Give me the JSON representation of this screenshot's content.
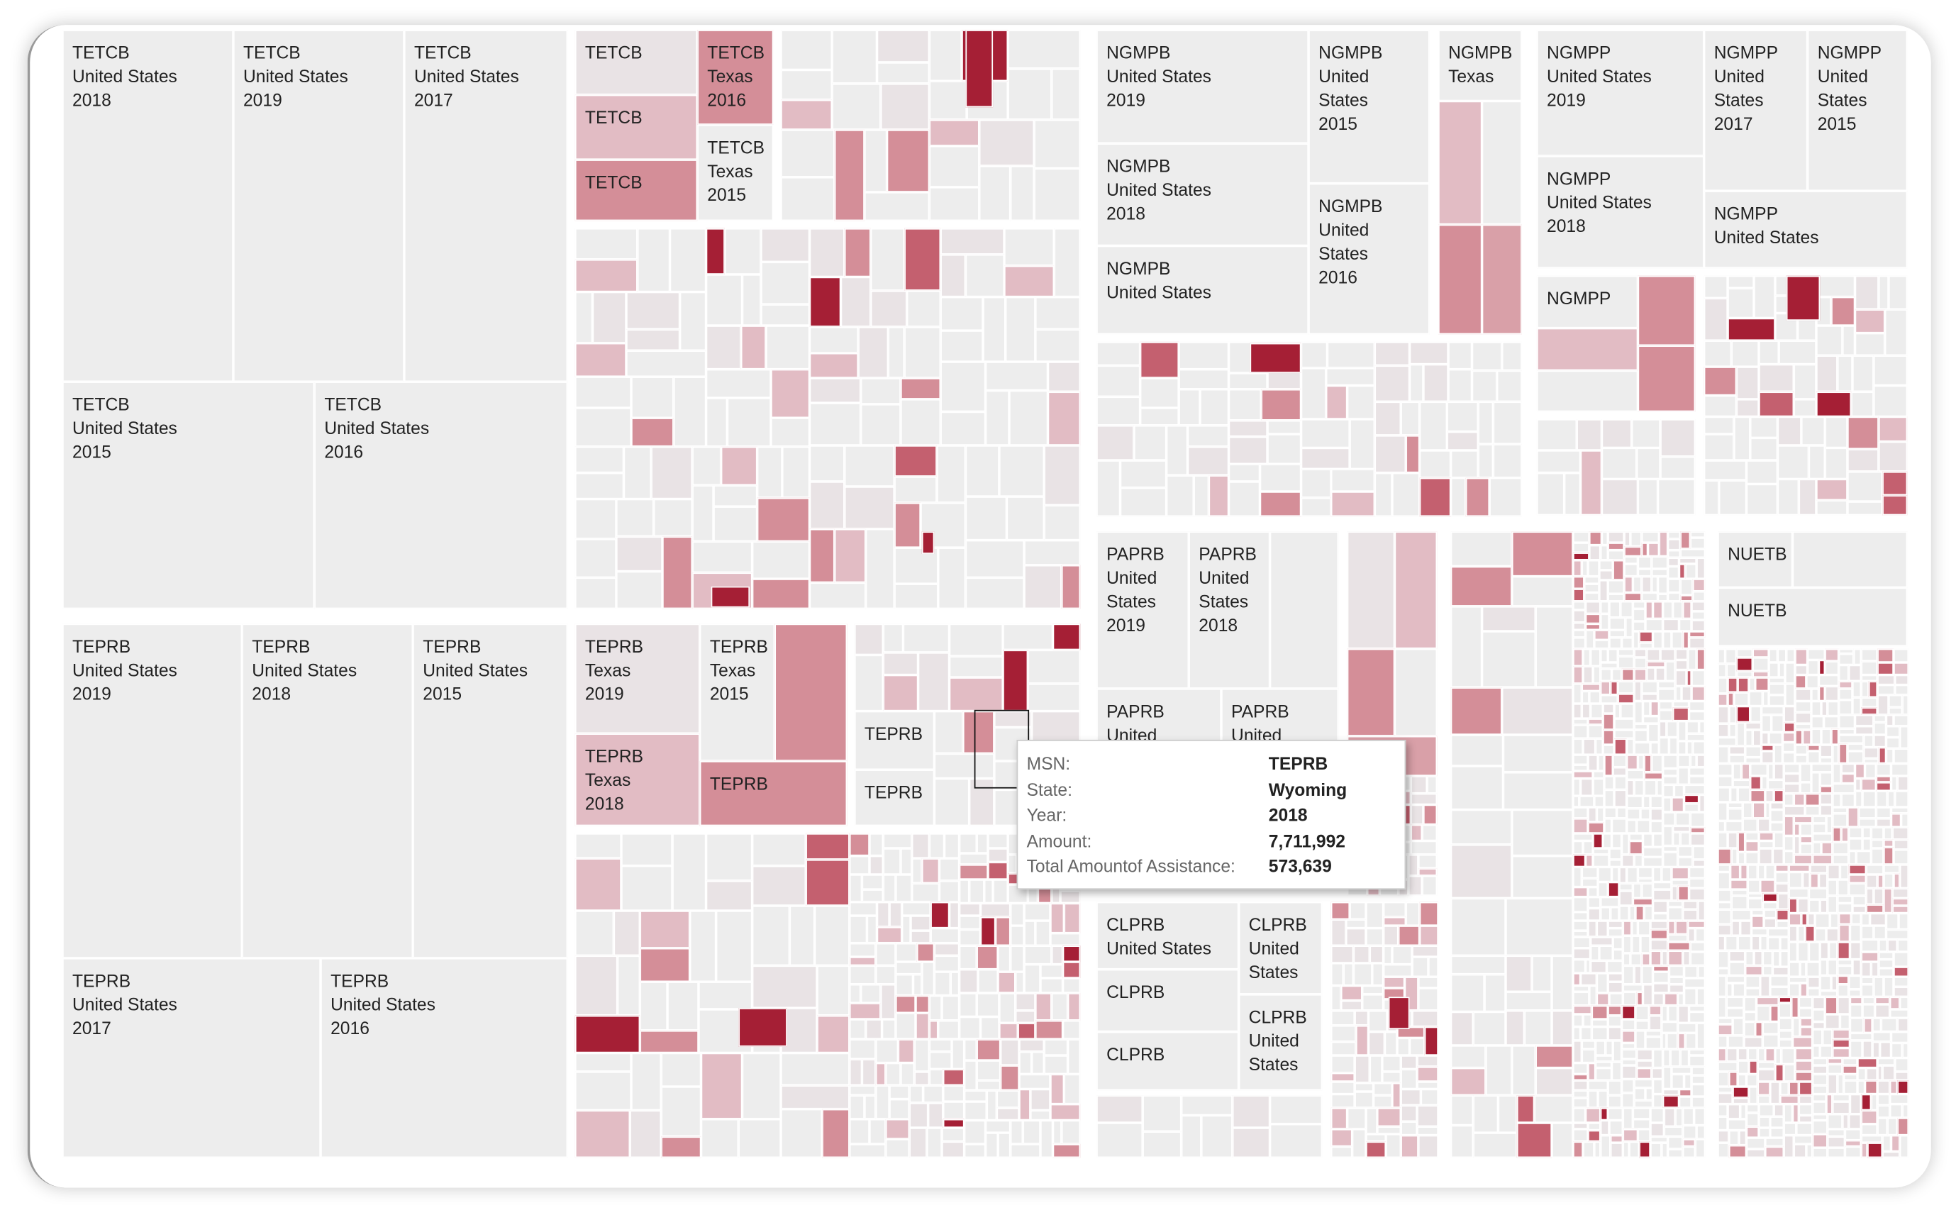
{
  "colors": {
    "base": "#ededed",
    "faint": "#e9e3e5",
    "light": "#e2bcc4",
    "medium": "#d9a0a8",
    "strong": "#d48e98",
    "deep": "#c4606f",
    "dark": "#a51f35"
  },
  "chart_data": {
    "type": "treemap",
    "size_measure": "Amount",
    "color_measure": "Total Amountof Assistance",
    "tiles": [
      {
        "lines": [
          "TETCB",
          "United States",
          "2018"
        ],
        "shade": "base"
      },
      {
        "lines": [
          "TETCB",
          "United States",
          "2019"
        ],
        "shade": "base"
      },
      {
        "lines": [
          "TETCB",
          "United States",
          "2017"
        ],
        "shade": "base"
      },
      {
        "lines": [
          "TETCB",
          "United States",
          "2015"
        ],
        "shade": "base"
      },
      {
        "lines": [
          "TETCB",
          "United States",
          "2016"
        ],
        "shade": "base"
      },
      {
        "lines": [
          "TETCB"
        ],
        "shade": "faint"
      },
      {
        "lines": [
          "TETCB"
        ],
        "shade": "light"
      },
      {
        "lines": [
          "TETCB"
        ],
        "shade": "strong"
      },
      {
        "lines": [
          "TETCB",
          "Texas",
          "2016"
        ],
        "shade": "strong"
      },
      {
        "lines": [
          "TETCB",
          "Texas",
          "2015"
        ],
        "shade": "base"
      },
      {
        "lines": [
          "TEPRB",
          "United States",
          "2019"
        ],
        "shade": "base"
      },
      {
        "lines": [
          "TEPRB",
          "United States",
          "2018"
        ],
        "shade": "base"
      },
      {
        "lines": [
          "TEPRB",
          "United States",
          "2015"
        ],
        "shade": "base"
      },
      {
        "lines": [
          "TEPRB",
          "United States",
          "2017"
        ],
        "shade": "base"
      },
      {
        "lines": [
          "TEPRB",
          "United States",
          "2016"
        ],
        "shade": "base"
      },
      {
        "lines": [
          "TEPRB",
          "Texas",
          "2019"
        ],
        "shade": "faint"
      },
      {
        "lines": [
          "TEPRB",
          "Texas",
          "2018"
        ],
        "shade": "light"
      },
      {
        "lines": [
          "TEPRB",
          "Texas",
          "2015"
        ],
        "shade": "base"
      },
      {
        "lines": [],
        "shade": "strong"
      },
      {
        "lines": [
          "TEPRB"
        ],
        "shade": "strong"
      },
      {
        "lines": [
          "TEPRB"
        ],
        "shade": "base"
      },
      {
        "lines": [
          "TEPRB"
        ],
        "shade": "base"
      },
      {
        "lines": [
          "NGMPB",
          "United States",
          "2019"
        ],
        "shade": "base"
      },
      {
        "lines": [
          "NGMPB",
          "United States",
          "2018"
        ],
        "shade": "base"
      },
      {
        "lines": [
          "NGMPB",
          "United States"
        ],
        "shade": "base"
      },
      {
        "lines": [
          "NGMPB",
          "United",
          "States",
          "2015"
        ],
        "shade": "base"
      },
      {
        "lines": [
          "NGMPB",
          "United",
          "States",
          "2016"
        ],
        "shade": "base"
      },
      {
        "lines": [
          "NGMPB",
          "Texas"
        ],
        "shade": "base"
      },
      {
        "lines": [],
        "shade": "light"
      },
      {
        "lines": [],
        "shade": "base"
      },
      {
        "lines": [],
        "shade": "strong"
      },
      {
        "lines": [],
        "shade": "medium"
      },
      {
        "lines": [
          "NGMPP",
          "United States",
          "2019"
        ],
        "shade": "base"
      },
      {
        "lines": [
          "NGMPP",
          "United States",
          "2018"
        ],
        "shade": "base"
      },
      {
        "lines": [
          "NGMPP",
          "United",
          "States",
          "2017"
        ],
        "shade": "base"
      },
      {
        "lines": [
          "NGMPP",
          "United",
          "States",
          "2015"
        ],
        "shade": "base"
      },
      {
        "lines": [
          "NGMPP",
          "United States"
        ],
        "shade": "base"
      },
      {
        "lines": [
          "NGMPP"
        ],
        "shade": "base"
      },
      {
        "lines": [],
        "shade": "strong"
      },
      {
        "lines": [],
        "shade": "light"
      },
      {
        "lines": [],
        "shade": "strong"
      },
      {
        "lines": [],
        "shade": "base"
      },
      {
        "lines": [
          "PAPRB",
          "United",
          "States",
          "2019"
        ],
        "shade": "base"
      },
      {
        "lines": [
          "PAPRB",
          "United",
          "States",
          "2018"
        ],
        "shade": "base"
      },
      {
        "lines": [],
        "shade": "base"
      },
      {
        "lines": [
          "PAPRB",
          "United"
        ],
        "shade": "base"
      },
      {
        "lines": [
          "PAPRB",
          "United"
        ],
        "shade": "base"
      },
      {
        "lines": [],
        "shade": "faint"
      },
      {
        "lines": [],
        "shade": "light"
      },
      {
        "lines": [],
        "shade": "strong"
      },
      {
        "lines": [],
        "shade": "base"
      },
      {
        "lines": [],
        "shade": "medium"
      },
      {
        "lines": [
          "CLPRB",
          "United States"
        ],
        "shade": "base"
      },
      {
        "lines": [
          "CLPRB"
        ],
        "shade": "base"
      },
      {
        "lines": [
          "CLPRB"
        ],
        "shade": "base"
      },
      {
        "lines": [
          "CLPRB",
          "United",
          "States"
        ],
        "shade": "base"
      },
      {
        "lines": [
          "CLPRB",
          "United",
          "States"
        ],
        "shade": "base"
      },
      {
        "lines": [
          "NUETB"
        ],
        "shade": "base"
      },
      {
        "lines": [],
        "shade": "base"
      },
      {
        "lines": [
          "NUETB"
        ],
        "shade": "base"
      },
      {
        "lines": [],
        "shade": "dark"
      },
      {
        "lines": [],
        "shade": "dark"
      },
      {
        "lines": [],
        "shade": "dark"
      },
      {
        "lines": [],
        "shade": "dark"
      },
      {
        "lines": [],
        "shade": "dark"
      },
      {
        "lines": [],
        "shade": "dark"
      },
      {
        "lines": [],
        "shade": "dark"
      }
    ],
    "tooltip": {
      "rows": [
        {
          "key": "MSN:",
          "value": "TEPRB"
        },
        {
          "key": "State:",
          "value": "Wyoming"
        },
        {
          "key": "Year:",
          "value": "2018"
        },
        {
          "key": "Amount:",
          "value": "7,711,992"
        },
        {
          "key": "Total Amountof Assistance:",
          "value": "573,639"
        }
      ]
    }
  }
}
